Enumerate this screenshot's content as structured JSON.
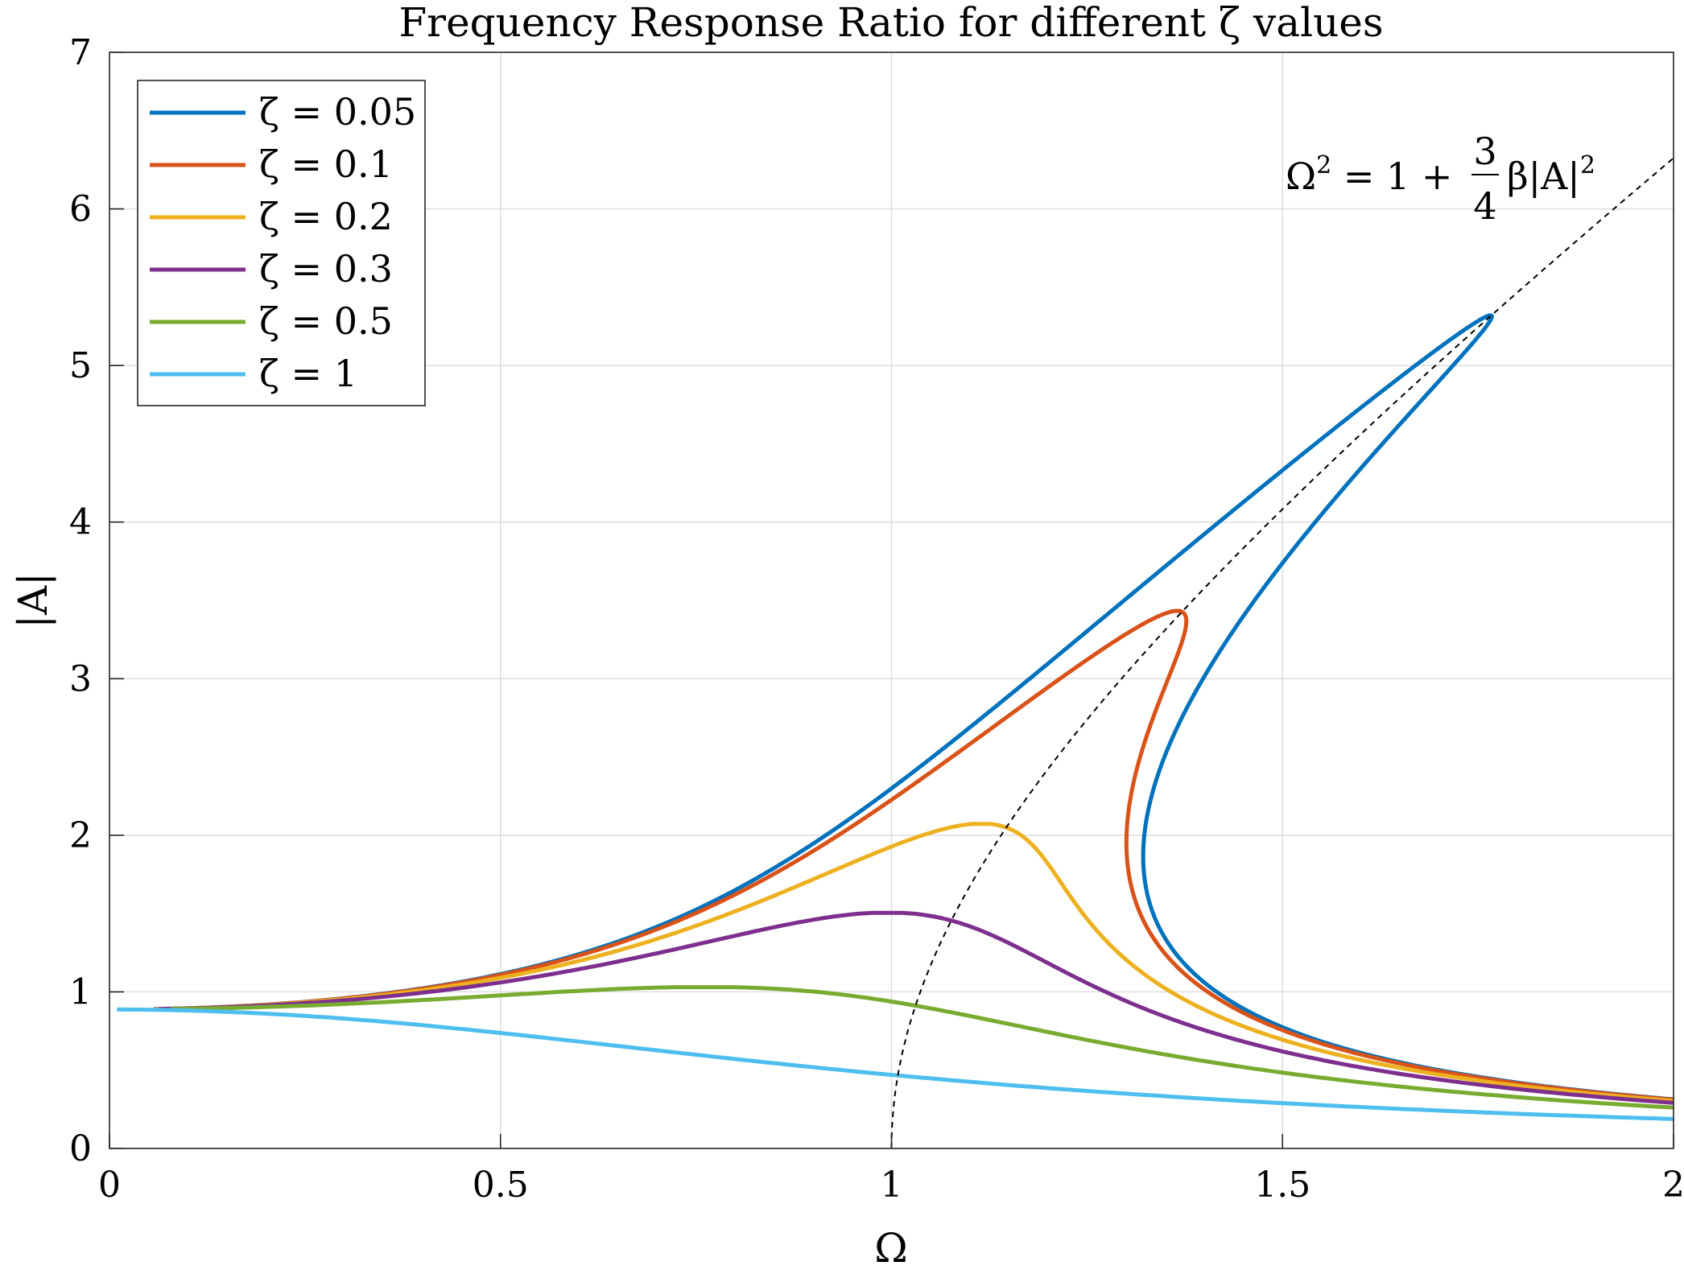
{
  "chart_data": {
    "type": "line",
    "title": "Frequency Response Ratio for different ζ values",
    "xlabel": "Ω",
    "ylabel": "|A|",
    "xlim": [
      0,
      2
    ],
    "ylim": [
      0,
      7
    ],
    "xticks": [
      "0",
      "0.5",
      "1",
      "1.5",
      "2"
    ],
    "yticks": [
      "0",
      "1",
      "2",
      "3",
      "4",
      "5",
      "6",
      "7"
    ],
    "grid": true,
    "legend_position": "top-left",
    "beta": 0.1,
    "force_amplitude": 0.94,
    "series": [
      {
        "name": "ζ = 0.05",
        "zeta": 0.05,
        "color": "#0072BD"
      },
      {
        "name": "ζ = 0.1",
        "zeta": 0.1,
        "color": "#D95319"
      },
      {
        "name": "ζ = 0.2",
        "zeta": 0.2,
        "color": "#EDB120"
      },
      {
        "name": "ζ = 0.3",
        "zeta": 0.3,
        "color": "#7E2F8E"
      },
      {
        "name": "ζ = 0.5",
        "zeta": 0.5,
        "color": "#77AC30"
      },
      {
        "name": "ζ = 1",
        "zeta": 1,
        "color": "#4DBEEE"
      }
    ],
    "backbone": {
      "label_lhs": "Ω",
      "label_sup1": "2",
      "label_mid": " = 1 + ",
      "label_num": "3",
      "label_den": "4",
      "label_rhs": "β|A|",
      "label_sup2": "2",
      "color": "#000000",
      "style": "dashed"
    }
  }
}
